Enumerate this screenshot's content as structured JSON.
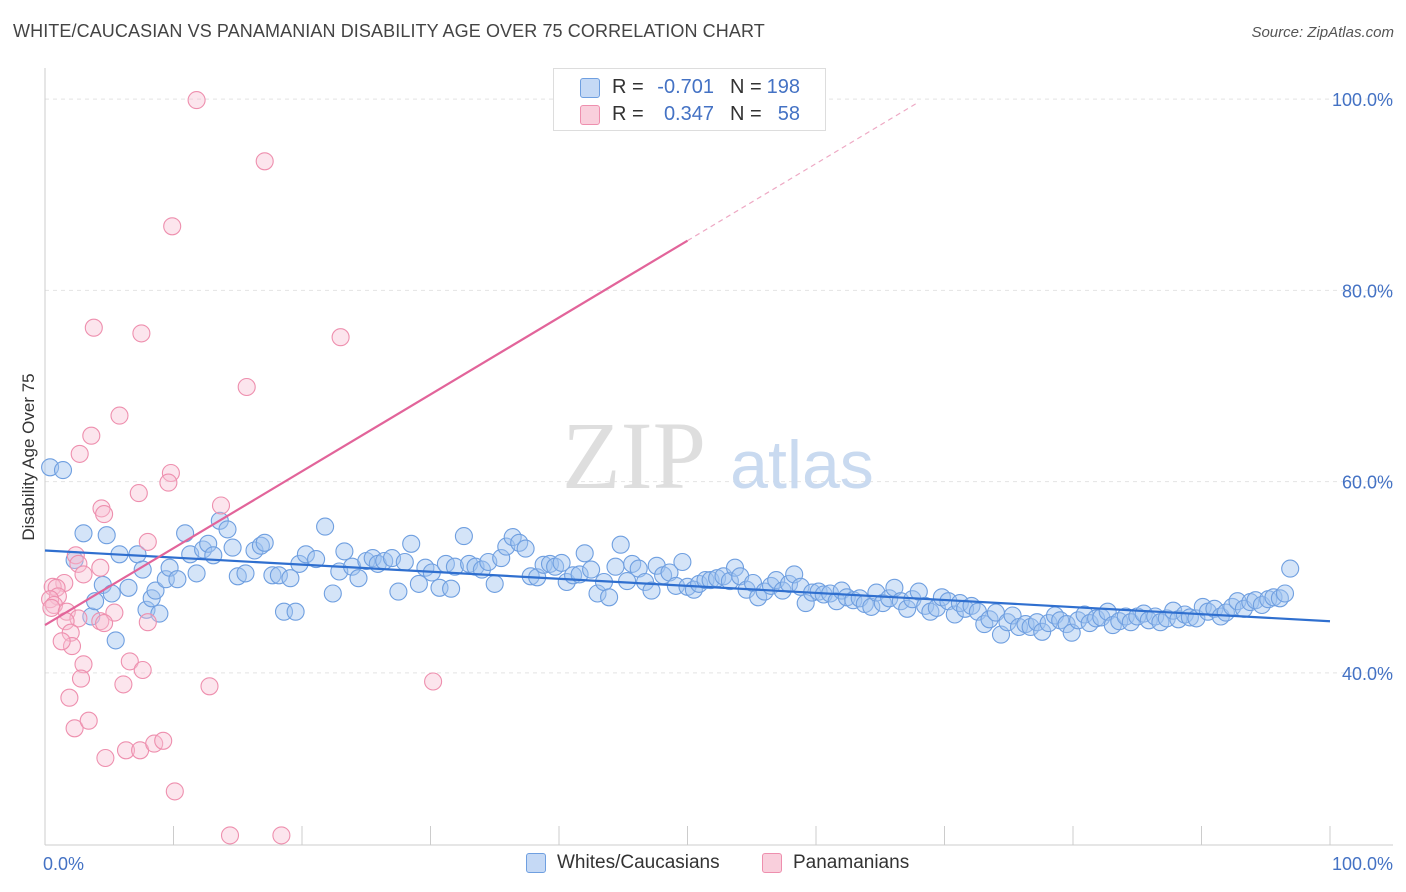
{
  "title": "WHITE/CAUCASIAN VS PANAMANIAN DISABILITY AGE OVER 75 CORRELATION CHART",
  "source": "Source: ZipAtlas.com",
  "watermark": {
    "zip": "ZIP",
    "atlas": "atlas"
  },
  "legend": [
    {
      "r_label": "R =",
      "r_value": "-0.701",
      "n_label": "N =",
      "n_value": "198",
      "color": "#6f9fe0",
      "fill": "#c5d9f5"
    },
    {
      "r_label": "R =",
      "r_value": "0.347",
      "n_label": "N =",
      "n_value": "58",
      "color": "#ee8fae",
      "fill": "#f9cfdc"
    }
  ],
  "bottom_legend": [
    {
      "label": "Whites/Caucasians",
      "color": "#6f9fe0",
      "fill": "#c5d9f5"
    },
    {
      "label": "Panamanians",
      "color": "#ee8fae",
      "fill": "#f9cfdc"
    }
  ],
  "chart_data": {
    "type": "scatter",
    "title": "WHITE/CAUCASIAN VS PANAMANIAN DISABILITY AGE OVER 75 CORRELATION CHART",
    "xlabel": "",
    "ylabel": "Disability Age Over 75",
    "xlim": [
      0,
      100
    ],
    "ylim": [
      22,
      102
    ],
    "x_tick_labels": [
      "0.0%",
      "100.0%"
    ],
    "y_ticks": [
      40,
      60,
      80,
      100
    ],
    "y_tick_labels": [
      "40.0%",
      "60.0%",
      "80.0%",
      "100.0%"
    ],
    "grid": true,
    "legend_position": "top-center",
    "series": [
      {
        "name": "Whites/Caucasians",
        "color": "#4472c4",
        "trend": {
          "x": [
            0,
            100
          ],
          "y": [
            52.8,
            45.4
          ]
        },
        "points": [
          [
            0.4,
            61.5
          ],
          [
            1.4,
            61.2
          ],
          [
            2.3,
            51.8
          ],
          [
            3.0,
            54.6
          ],
          [
            3.6,
            45.9
          ],
          [
            3.9,
            47.5
          ],
          [
            4.5,
            49.2
          ],
          [
            4.8,
            54.4
          ],
          [
            5.2,
            48.3
          ],
          [
            5.5,
            43.4
          ],
          [
            5.8,
            52.4
          ],
          [
            6.5,
            48.9
          ],
          [
            7.2,
            52.4
          ],
          [
            7.6,
            50.8
          ],
          [
            7.9,
            46.6
          ],
          [
            8.3,
            47.8
          ],
          [
            8.6,
            48.6
          ],
          [
            8.9,
            46.2
          ],
          [
            9.4,
            49.8
          ],
          [
            9.7,
            51.0
          ],
          [
            10.3,
            49.8
          ],
          [
            10.9,
            54.6
          ],
          [
            11.3,
            52.4
          ],
          [
            11.8,
            50.4
          ],
          [
            12.3,
            52.9
          ],
          [
            12.7,
            53.5
          ],
          [
            13.1,
            52.3
          ],
          [
            13.6,
            55.9
          ],
          [
            14.2,
            55.0
          ],
          [
            14.6,
            53.1
          ],
          [
            15.0,
            50.1
          ],
          [
            15.6,
            50.4
          ],
          [
            16.3,
            52.8
          ],
          [
            16.8,
            53.3
          ],
          [
            17.1,
            53.6
          ],
          [
            17.7,
            50.2
          ],
          [
            18.2,
            50.2
          ],
          [
            18.6,
            46.4
          ],
          [
            19.1,
            49.9
          ],
          [
            19.5,
            46.4
          ],
          [
            19.8,
            51.4
          ],
          [
            20.3,
            52.4
          ],
          [
            21.1,
            51.9
          ],
          [
            21.8,
            55.3
          ],
          [
            22.4,
            48.3
          ],
          [
            22.9,
            50.6
          ],
          [
            23.3,
            52.7
          ],
          [
            23.9,
            51.1
          ],
          [
            24.4,
            49.9
          ],
          [
            25.0,
            51.7
          ],
          [
            25.5,
            52.0
          ],
          [
            25.9,
            51.4
          ],
          [
            26.4,
            51.7
          ],
          [
            27.0,
            52.0
          ],
          [
            27.5,
            48.5
          ],
          [
            28.0,
            51.6
          ],
          [
            28.5,
            53.5
          ],
          [
            29.1,
            49.3
          ],
          [
            29.6,
            51.0
          ],
          [
            30.1,
            50.5
          ],
          [
            30.7,
            48.9
          ],
          [
            31.2,
            51.4
          ],
          [
            31.6,
            48.8
          ],
          [
            31.9,
            51.1
          ],
          [
            32.6,
            54.3
          ],
          [
            33.0,
            51.4
          ],
          [
            33.5,
            51.1
          ],
          [
            34.0,
            50.8
          ],
          [
            34.5,
            51.6
          ],
          [
            35.0,
            49.3
          ],
          [
            35.5,
            52.0
          ],
          [
            35.9,
            53.2
          ],
          [
            36.4,
            54.2
          ],
          [
            36.9,
            53.6
          ],
          [
            37.4,
            53.0
          ],
          [
            37.8,
            50.1
          ],
          [
            38.3,
            50.0
          ],
          [
            38.8,
            51.3
          ],
          [
            39.3,
            51.4
          ],
          [
            39.7,
            51.1
          ],
          [
            40.2,
            51.5
          ],
          [
            40.6,
            49.5
          ],
          [
            41.1,
            50.2
          ],
          [
            41.6,
            50.3
          ],
          [
            42.0,
            52.5
          ],
          [
            42.5,
            50.8
          ],
          [
            43.0,
            48.3
          ],
          [
            43.5,
            49.5
          ],
          [
            43.9,
            47.9
          ],
          [
            44.4,
            51.1
          ],
          [
            44.8,
            53.4
          ],
          [
            45.3,
            49.6
          ],
          [
            45.7,
            51.4
          ],
          [
            46.2,
            50.9
          ],
          [
            46.7,
            49.5
          ],
          [
            47.2,
            48.6
          ],
          [
            47.6,
            51.2
          ],
          [
            48.1,
            50.2
          ],
          [
            48.6,
            50.5
          ],
          [
            49.1,
            49.1
          ],
          [
            49.6,
            51.6
          ],
          [
            50.0,
            49.0
          ],
          [
            50.5,
            48.7
          ],
          [
            50.9,
            49.3
          ],
          [
            51.4,
            49.7
          ],
          [
            51.8,
            49.7
          ],
          [
            52.3,
            49.9
          ],
          [
            52.8,
            50.1
          ],
          [
            53.3,
            49.6
          ],
          [
            53.7,
            51.0
          ],
          [
            54.1,
            50.1
          ],
          [
            54.6,
            48.7
          ],
          [
            55.1,
            49.4
          ],
          [
            55.5,
            47.9
          ],
          [
            56.0,
            48.5
          ],
          [
            56.5,
            49.1
          ],
          [
            56.9,
            49.7
          ],
          [
            57.4,
            48.6
          ],
          [
            57.9,
            49.3
          ],
          [
            58.3,
            50.3
          ],
          [
            58.8,
            49.0
          ],
          [
            59.2,
            47.3
          ],
          [
            59.7,
            48.4
          ],
          [
            60.2,
            48.5
          ],
          [
            60.6,
            48.2
          ],
          [
            61.1,
            48.3
          ],
          [
            61.6,
            47.5
          ],
          [
            62.0,
            48.6
          ],
          [
            62.4,
            47.9
          ],
          [
            62.9,
            47.6
          ],
          [
            63.4,
            47.8
          ],
          [
            63.8,
            47.2
          ],
          [
            64.3,
            46.9
          ],
          [
            64.7,
            48.4
          ],
          [
            65.2,
            47.3
          ],
          [
            65.7,
            47.8
          ],
          [
            66.1,
            48.9
          ],
          [
            66.6,
            47.5
          ],
          [
            67.1,
            46.7
          ],
          [
            67.5,
            47.7
          ],
          [
            68.0,
            48.5
          ],
          [
            68.5,
            47.0
          ],
          [
            68.9,
            46.4
          ],
          [
            69.4,
            46.8
          ],
          [
            69.8,
            47.9
          ],
          [
            70.3,
            47.5
          ],
          [
            70.8,
            46.1
          ],
          [
            71.2,
            47.3
          ],
          [
            71.6,
            46.7
          ],
          [
            72.1,
            47.0
          ],
          [
            72.6,
            46.4
          ],
          [
            73.1,
            45.1
          ],
          [
            73.5,
            45.6
          ],
          [
            74.0,
            46.3
          ],
          [
            74.4,
            44.0
          ],
          [
            74.9,
            45.3
          ],
          [
            75.3,
            46.0
          ],
          [
            75.8,
            44.8
          ],
          [
            76.3,
            45.1
          ],
          [
            76.7,
            44.8
          ],
          [
            77.2,
            45.3
          ],
          [
            77.6,
            44.3
          ],
          [
            78.1,
            45.2
          ],
          [
            78.6,
            46.0
          ],
          [
            79.0,
            45.5
          ],
          [
            79.5,
            45.1
          ],
          [
            79.9,
            44.2
          ],
          [
            80.4,
            45.5
          ],
          [
            80.9,
            46.1
          ],
          [
            81.3,
            45.2
          ],
          [
            81.8,
            45.7
          ],
          [
            82.2,
            45.8
          ],
          [
            82.7,
            46.4
          ],
          [
            83.1,
            45.0
          ],
          [
            83.6,
            45.4
          ],
          [
            84.1,
            45.9
          ],
          [
            84.5,
            45.3
          ],
          [
            85.0,
            45.9
          ],
          [
            85.5,
            46.2
          ],
          [
            85.9,
            45.5
          ],
          [
            86.4,
            45.9
          ],
          [
            86.8,
            45.3
          ],
          [
            87.3,
            45.7
          ],
          [
            87.8,
            46.5
          ],
          [
            88.2,
            45.6
          ],
          [
            88.7,
            46.1
          ],
          [
            89.1,
            45.8
          ],
          [
            89.6,
            45.7
          ],
          [
            90.1,
            46.9
          ],
          [
            90.5,
            46.4
          ],
          [
            91.0,
            46.7
          ],
          [
            91.5,
            45.9
          ],
          [
            91.9,
            46.3
          ],
          [
            92.4,
            46.9
          ],
          [
            92.8,
            47.5
          ],
          [
            93.3,
            46.7
          ],
          [
            93.8,
            47.4
          ],
          [
            94.2,
            47.6
          ],
          [
            94.7,
            47.1
          ],
          [
            95.2,
            47.7
          ],
          [
            95.6,
            47.9
          ],
          [
            96.1,
            47.8
          ],
          [
            96.5,
            48.3
          ],
          [
            96.9,
            50.9
          ]
        ]
      },
      {
        "name": "Panamanians",
        "color": "#e2649a",
        "trend": {
          "x": [
            0,
            50
          ],
          "y": [
            45.0,
            85.2
          ]
        },
        "trend_ext": {
          "x": [
            50,
            68
          ],
          "y": [
            85.2,
            99.7
          ]
        },
        "points": [
          [
            11.8,
            99.9
          ],
          [
            17.1,
            93.5
          ],
          [
            9.9,
            86.7
          ],
          [
            3.8,
            76.1
          ],
          [
            7.5,
            75.5
          ],
          [
            23.0,
            75.1
          ],
          [
            15.7,
            69.9
          ],
          [
            5.8,
            66.9
          ],
          [
            3.6,
            64.8
          ],
          [
            2.7,
            62.9
          ],
          [
            9.8,
            60.9
          ],
          [
            9.6,
            59.9
          ],
          [
            7.3,
            58.8
          ],
          [
            13.7,
            57.5
          ],
          [
            4.4,
            57.2
          ],
          [
            4.6,
            56.6
          ],
          [
            8.0,
            53.7
          ],
          [
            2.4,
            52.3
          ],
          [
            2.6,
            51.4
          ],
          [
            4.3,
            51.0
          ],
          [
            3.0,
            50.3
          ],
          [
            1.5,
            49.4
          ],
          [
            0.6,
            49.0
          ],
          [
            0.9,
            48.9
          ],
          [
            1.0,
            48.0
          ],
          [
            0.4,
            47.7
          ],
          [
            0.7,
            47.1
          ],
          [
            0.5,
            46.8
          ],
          [
            1.7,
            46.4
          ],
          [
            2.6,
            45.7
          ],
          [
            1.6,
            45.4
          ],
          [
            4.3,
            45.4
          ],
          [
            5.4,
            46.3
          ],
          [
            8.0,
            45.3
          ],
          [
            4.6,
            45.2
          ],
          [
            2.0,
            44.2
          ],
          [
            2.1,
            42.8
          ],
          [
            1.3,
            43.3
          ],
          [
            3.0,
            40.9
          ],
          [
            6.6,
            41.2
          ],
          [
            7.6,
            40.3
          ],
          [
            2.8,
            39.4
          ],
          [
            6.1,
            38.8
          ],
          [
            12.8,
            38.6
          ],
          [
            30.2,
            39.1
          ],
          [
            1.9,
            37.4
          ],
          [
            2.3,
            34.2
          ],
          [
            3.4,
            35.0
          ],
          [
            4.7,
            31.1
          ],
          [
            6.3,
            31.9
          ],
          [
            7.4,
            31.9
          ],
          [
            8.5,
            32.6
          ],
          [
            9.2,
            32.9
          ],
          [
            10.1,
            27.6
          ],
          [
            14.4,
            23.0
          ],
          [
            18.4,
            23.0
          ]
        ]
      }
    ]
  }
}
